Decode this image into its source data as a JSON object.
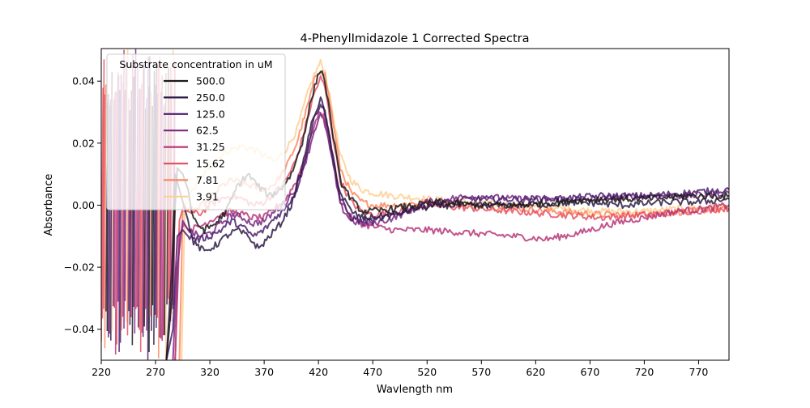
{
  "chart_data": {
    "type": "line",
    "title": "4-PhenylImidazole 1 Corrected Spectra",
    "xlabel": "Wavlength nm",
    "ylabel": "Absorbance",
    "xlim": [
      220,
      798
    ],
    "ylim": [
      -0.05,
      0.0505
    ],
    "xticks": [
      220,
      270,
      320,
      370,
      420,
      470,
      520,
      570,
      620,
      670,
      720,
      770
    ],
    "yticks": [
      -0.04,
      -0.02,
      0.0,
      0.02,
      0.04
    ],
    "ytick_labels": [
      "−0.04",
      "−0.02",
      "0.00",
      "0.02",
      "0.04"
    ],
    "grid": false,
    "legend": {
      "title": "Substrate concentration in uM",
      "placement": "upper-left"
    },
    "series": [
      {
        "name": "500.0",
        "color": "#1a1a1a",
        "values": [
          [
            280,
            -0.05
          ],
          [
            285,
            -0.03
          ],
          [
            288,
            0.0
          ],
          [
            290,
            0.012
          ],
          [
            295,
            0.01
          ],
          [
            300,
            0.005
          ],
          [
            305,
            -0.005
          ],
          [
            315,
            -0.008
          ],
          [
            325,
            -0.006
          ],
          [
            335,
            -0.002
          ],
          [
            345,
            0.006
          ],
          [
            355,
            0.01
          ],
          [
            365,
            0.006
          ],
          [
            375,
            0.003
          ],
          [
            385,
            0.005
          ],
          [
            395,
            0.01
          ],
          [
            405,
            0.02
          ],
          [
            412,
            0.032
          ],
          [
            418,
            0.04
          ],
          [
            422,
            0.044
          ],
          [
            426,
            0.04
          ],
          [
            432,
            0.026
          ],
          [
            440,
            0.008
          ],
          [
            450,
            0.002
          ],
          [
            460,
            -0.002
          ],
          [
            470,
            -0.002
          ],
          [
            490,
            -0.001
          ],
          [
            510,
            0.0
          ],
          [
            530,
            0.001
          ],
          [
            560,
            0.0
          ],
          [
            600,
            0.0
          ],
          [
            640,
            0.001
          ],
          [
            680,
            0.002
          ],
          [
            720,
            0.002
          ],
          [
            760,
            0.003
          ],
          [
            798,
            0.003
          ]
        ]
      },
      {
        "name": "250.0",
        "color": "#2e1b45",
        "values": [
          [
            280,
            -0.05
          ],
          [
            285,
            -0.02
          ],
          [
            288,
            0.01
          ],
          [
            292,
            0.005
          ],
          [
            300,
            -0.005
          ],
          [
            305,
            -0.012
          ],
          [
            315,
            -0.015
          ],
          [
            325,
            -0.013
          ],
          [
            335,
            -0.01
          ],
          [
            345,
            -0.008
          ],
          [
            355,
            -0.01
          ],
          [
            365,
            -0.014
          ],
          [
            375,
            -0.01
          ],
          [
            385,
            -0.006
          ],
          [
            395,
            0.0
          ],
          [
            405,
            0.012
          ],
          [
            412,
            0.024
          ],
          [
            418,
            0.031
          ],
          [
            422,
            0.034
          ],
          [
            426,
            0.03
          ],
          [
            432,
            0.018
          ],
          [
            440,
            0.004
          ],
          [
            450,
            -0.002
          ],
          [
            460,
            -0.004
          ],
          [
            470,
            -0.004
          ],
          [
            490,
            -0.003
          ],
          [
            510,
            -0.001
          ],
          [
            540,
            0.0
          ],
          [
            580,
            0.0
          ],
          [
            620,
            0.0
          ],
          [
            660,
            0.001
          ],
          [
            700,
            0.0
          ],
          [
            740,
            0.001
          ],
          [
            770,
            0.001
          ],
          [
            798,
            0.002
          ]
        ]
      },
      {
        "name": "125.0",
        "color": "#4d1e6f",
        "values": [
          [
            280,
            -0.05
          ],
          [
            286,
            -0.04
          ],
          [
            290,
            -0.01
          ],
          [
            295,
            -0.008
          ],
          [
            300,
            -0.01
          ],
          [
            310,
            -0.011
          ],
          [
            320,
            -0.01
          ],
          [
            330,
            -0.008
          ],
          [
            340,
            -0.005
          ],
          [
            350,
            -0.007
          ],
          [
            360,
            -0.01
          ],
          [
            370,
            -0.008
          ],
          [
            380,
            -0.004
          ],
          [
            390,
            -0.001
          ],
          [
            400,
            0.005
          ],
          [
            410,
            0.018
          ],
          [
            416,
            0.028
          ],
          [
            422,
            0.033
          ],
          [
            426,
            0.03
          ],
          [
            432,
            0.018
          ],
          [
            440,
            0.002
          ],
          [
            450,
            -0.004
          ],
          [
            460,
            -0.005
          ],
          [
            470,
            -0.005
          ],
          [
            490,
            -0.003
          ],
          [
            520,
            0.0
          ],
          [
            560,
            0.002
          ],
          [
            600,
            0.002
          ],
          [
            640,
            0.002
          ],
          [
            680,
            0.003
          ],
          [
            720,
            0.003
          ],
          [
            760,
            0.004
          ],
          [
            798,
            0.005
          ]
        ]
      },
      {
        "name": "62.5",
        "color": "#7b2882",
        "values": [
          [
            286,
            -0.05
          ],
          [
            290,
            -0.02
          ],
          [
            295,
            -0.005
          ],
          [
            300,
            -0.008
          ],
          [
            310,
            -0.01
          ],
          [
            320,
            -0.009
          ],
          [
            330,
            -0.006
          ],
          [
            340,
            -0.003
          ],
          [
            350,
            -0.004
          ],
          [
            360,
            -0.006
          ],
          [
            370,
            -0.005
          ],
          [
            380,
            -0.002
          ],
          [
            390,
            0.001
          ],
          [
            400,
            0.006
          ],
          [
            410,
            0.016
          ],
          [
            416,
            0.024
          ],
          [
            422,
            0.029
          ],
          [
            426,
            0.026
          ],
          [
            432,
            0.016
          ],
          [
            440,
            0.0
          ],
          [
            450,
            -0.005
          ],
          [
            460,
            -0.006
          ],
          [
            470,
            -0.006
          ],
          [
            490,
            -0.004
          ],
          [
            520,
            0.001
          ],
          [
            560,
            0.003
          ],
          [
            600,
            0.002
          ],
          [
            640,
            0.002
          ],
          [
            680,
            0.002
          ],
          [
            720,
            0.003
          ],
          [
            760,
            0.003
          ],
          [
            798,
            0.004
          ]
        ]
      },
      {
        "name": "31.25",
        "color": "#b73779",
        "values": [
          [
            288,
            -0.05
          ],
          [
            292,
            -0.01
          ],
          [
            296,
            -0.006
          ],
          [
            300,
            -0.008
          ],
          [
            310,
            -0.007
          ],
          [
            320,
            -0.005
          ],
          [
            330,
            -0.003
          ],
          [
            340,
            -0.002
          ],
          [
            350,
            -0.003
          ],
          [
            360,
            -0.004
          ],
          [
            370,
            -0.004
          ],
          [
            380,
            -0.001
          ],
          [
            390,
            0.002
          ],
          [
            400,
            0.008
          ],
          [
            410,
            0.018
          ],
          [
            416,
            0.026
          ],
          [
            422,
            0.03
          ],
          [
            426,
            0.028
          ],
          [
            432,
            0.016
          ],
          [
            440,
            0.002
          ],
          [
            450,
            -0.004
          ],
          [
            460,
            -0.006
          ],
          [
            470,
            -0.007
          ],
          [
            490,
            -0.008
          ],
          [
            520,
            -0.008
          ],
          [
            560,
            -0.009
          ],
          [
            600,
            -0.01
          ],
          [
            630,
            -0.011
          ],
          [
            660,
            -0.009
          ],
          [
            690,
            -0.006
          ],
          [
            720,
            -0.004
          ],
          [
            750,
            -0.002
          ],
          [
            780,
            -0.001
          ],
          [
            798,
            0.0
          ]
        ]
      },
      {
        "name": "15.62",
        "color": "#e75263",
        "values": [
          [
            288,
            -0.05
          ],
          [
            292,
            -0.005
          ],
          [
            296,
            0.0
          ],
          [
            300,
            -0.002
          ],
          [
            310,
            -0.003
          ],
          [
            320,
            0.0
          ],
          [
            330,
            0.002
          ],
          [
            340,
            0.003
          ],
          [
            350,
            0.002
          ],
          [
            360,
            0.0
          ],
          [
            370,
            0.001
          ],
          [
            380,
            0.004
          ],
          [
            390,
            0.008
          ],
          [
            400,
            0.015
          ],
          [
            410,
            0.028
          ],
          [
            416,
            0.036
          ],
          [
            422,
            0.041
          ],
          [
            426,
            0.038
          ],
          [
            432,
            0.025
          ],
          [
            440,
            0.008
          ],
          [
            450,
            0.001
          ],
          [
            460,
            -0.002
          ],
          [
            470,
            -0.003
          ],
          [
            490,
            -0.002
          ],
          [
            520,
            0.0
          ],
          [
            560,
            -0.001
          ],
          [
            600,
            -0.002
          ],
          [
            640,
            -0.003
          ],
          [
            680,
            -0.004
          ],
          [
            720,
            -0.003
          ],
          [
            760,
            -0.002
          ],
          [
            798,
            -0.001
          ]
        ]
      },
      {
        "name": "7.81",
        "color": "#fb8861",
        "values": [
          [
            292,
            -0.05
          ],
          [
            295,
            -0.002
          ],
          [
            300,
            -0.002
          ],
          [
            310,
            -0.001
          ],
          [
            320,
            0.002
          ],
          [
            330,
            0.006
          ],
          [
            340,
            0.008
          ],
          [
            350,
            0.007
          ],
          [
            360,
            0.006
          ],
          [
            370,
            0.005
          ],
          [
            380,
            0.007
          ],
          [
            390,
            0.012
          ],
          [
            400,
            0.02
          ],
          [
            410,
            0.032
          ],
          [
            416,
            0.04
          ],
          [
            422,
            0.044
          ],
          [
            426,
            0.042
          ],
          [
            432,
            0.03
          ],
          [
            440,
            0.012
          ],
          [
            450,
            0.004
          ],
          [
            460,
            0.001
          ],
          [
            470,
            0.0
          ],
          [
            490,
            0.0
          ],
          [
            520,
            0.001
          ],
          [
            560,
            0.0
          ],
          [
            600,
            -0.001
          ],
          [
            640,
            -0.002
          ],
          [
            680,
            -0.003
          ],
          [
            720,
            -0.003
          ],
          [
            760,
            -0.002
          ],
          [
            798,
            -0.001
          ]
        ]
      },
      {
        "name": "3.91",
        "color": "#fecf92",
        "values": [
          [
            294,
            -0.05
          ],
          [
            297,
            0.0
          ],
          [
            300,
            0.002
          ],
          [
            310,
            0.008
          ],
          [
            320,
            0.012
          ],
          [
            330,
            0.016
          ],
          [
            340,
            0.018
          ],
          [
            350,
            0.019
          ],
          [
            360,
            0.018
          ],
          [
            370,
            0.016
          ],
          [
            380,
            0.014
          ],
          [
            390,
            0.018
          ],
          [
            400,
            0.024
          ],
          [
            410,
            0.036
          ],
          [
            416,
            0.042
          ],
          [
            422,
            0.046
          ],
          [
            426,
            0.043
          ],
          [
            432,
            0.032
          ],
          [
            440,
            0.016
          ],
          [
            450,
            0.008
          ],
          [
            460,
            0.005
          ],
          [
            470,
            0.004
          ],
          [
            490,
            0.003
          ],
          [
            520,
            0.002
          ],
          [
            560,
            0.001
          ],
          [
            600,
            0.0
          ],
          [
            640,
            -0.001
          ],
          [
            680,
            -0.002
          ],
          [
            720,
            -0.002
          ],
          [
            760,
            -0.001
          ],
          [
            798,
            0.0
          ]
        ]
      }
    ]
  }
}
